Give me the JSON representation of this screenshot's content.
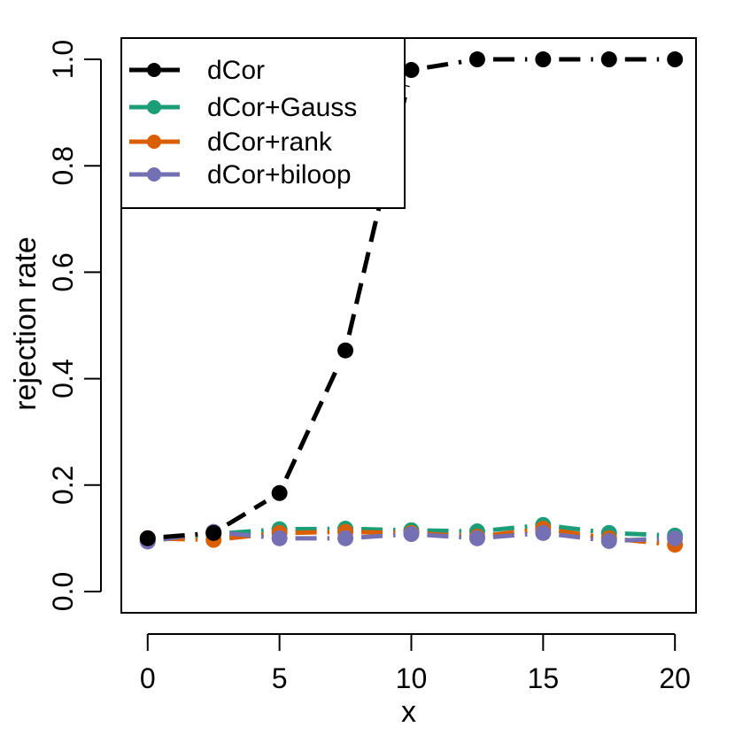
{
  "chart_data": {
    "type": "line",
    "title": "",
    "xlabel": "x",
    "ylabel": "rejection rate",
    "xlim": [
      -1,
      20.8
    ],
    "ylim": [
      -0.04,
      1.04
    ],
    "x_ticks": [
      0,
      5,
      10,
      15,
      20
    ],
    "y_ticks": [
      0.0,
      0.2,
      0.4,
      0.6,
      0.8,
      1.0
    ],
    "x_tick_labels": [
      "0",
      "5",
      "10",
      "15",
      "20"
    ],
    "y_tick_labels": [
      "0.0",
      "0.2",
      "0.4",
      "0.6",
      "0.8",
      "1.0"
    ],
    "grid": false,
    "legend_position": "top-left",
    "x": [
      0,
      2.5,
      5,
      7.5,
      10,
      12.5,
      15,
      17.5,
      20
    ],
    "series": [
      {
        "name": "dCor",
        "color": "#000000",
        "values": [
          0.1,
          0.11,
          0.185,
          0.453,
          0.98,
          1.0,
          1.0,
          1.0,
          1.0
        ]
      },
      {
        "name": "dCor+Gauss",
        "color": "#1b9e77",
        "values": [
          0.095,
          0.108,
          0.117,
          0.118,
          0.115,
          0.113,
          0.125,
          0.11,
          0.105
        ]
      },
      {
        "name": "dCor+rank",
        "color": "#d95f02",
        "values": [
          0.1,
          0.097,
          0.11,
          0.112,
          0.11,
          0.103,
          0.118,
          0.1,
          0.088
        ]
      },
      {
        "name": "dCor+biloop",
        "color": "#7570b3",
        "values": [
          0.094,
          0.112,
          0.1,
          0.1,
          0.108,
          0.1,
          0.11,
          0.095,
          0.1
        ]
      }
    ]
  }
}
